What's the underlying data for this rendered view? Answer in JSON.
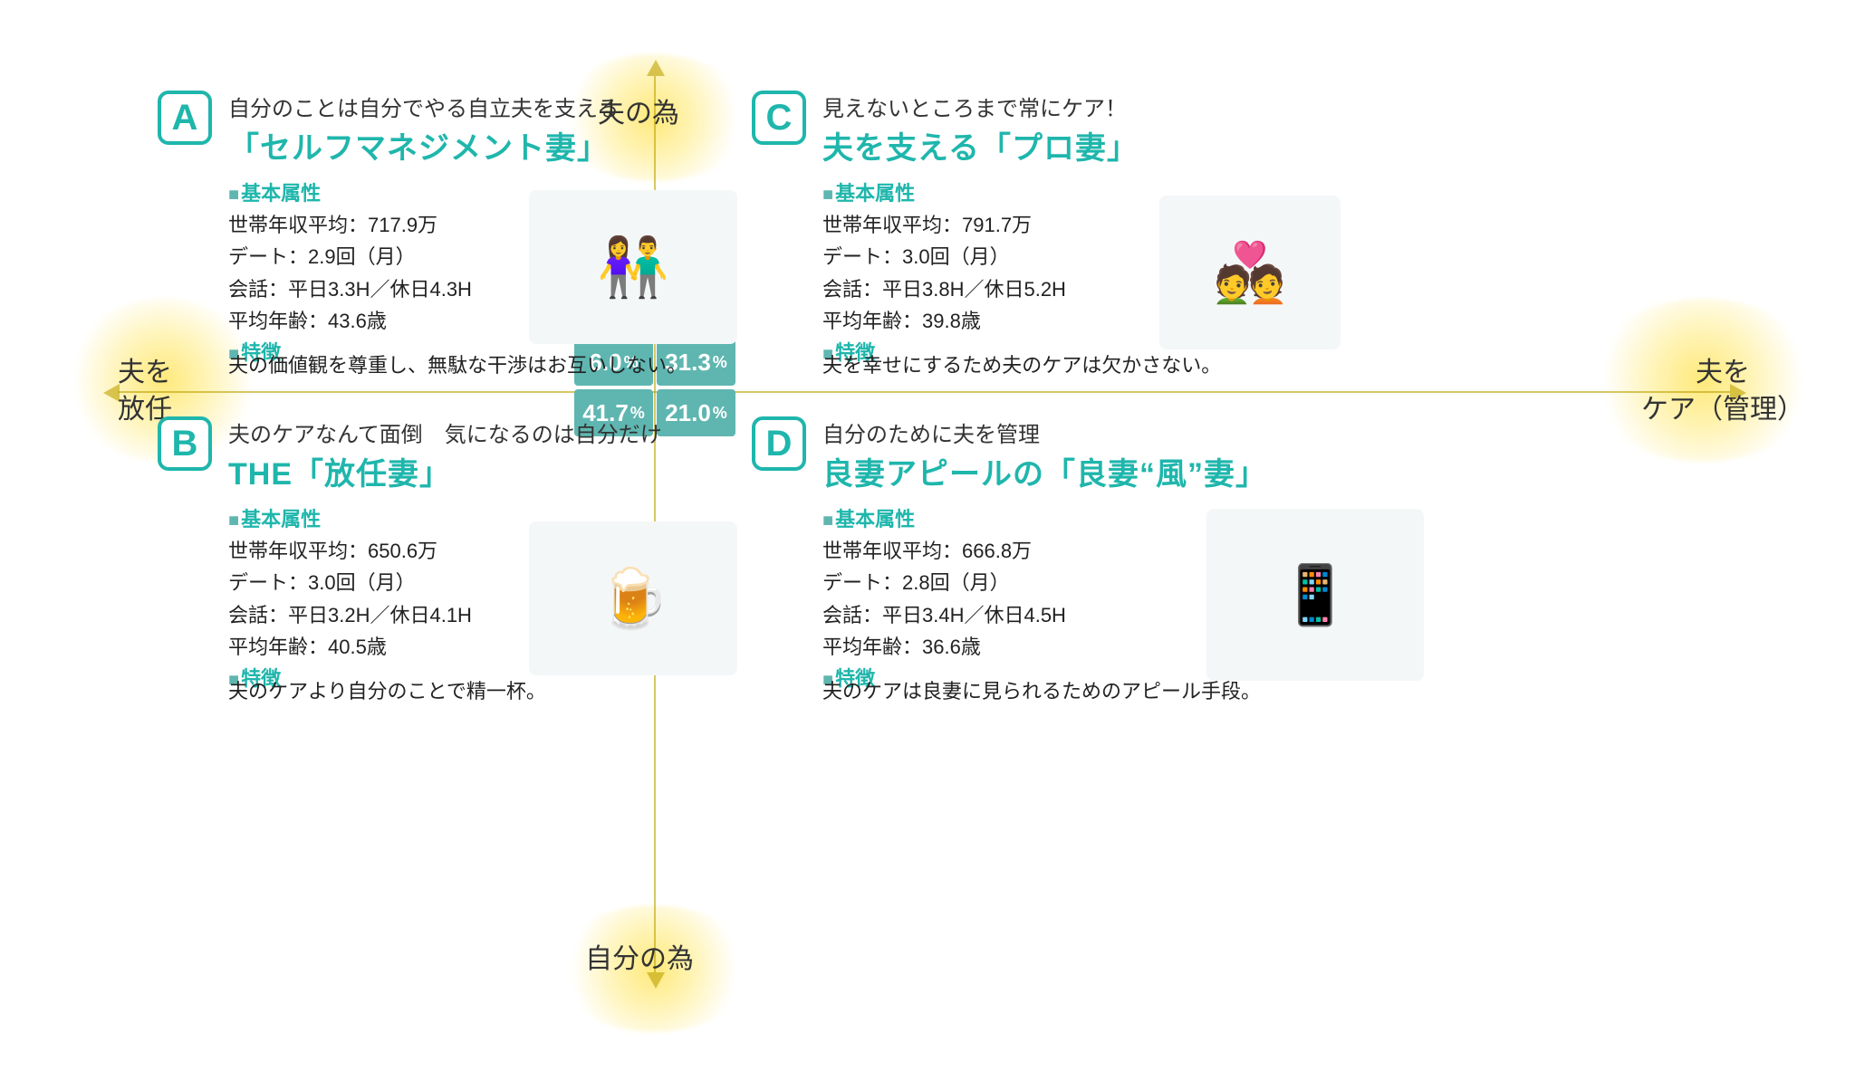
{
  "axes": {
    "top": "夫の為",
    "bottom": "自分の為",
    "left": "夫を\n放任",
    "right": "夫を\nケア（管理）",
    "line_color": "#bca200",
    "glow_color": "#ffe97a"
  },
  "center": {
    "bg_color": "#5fb6b0",
    "text_color": "#ffffff",
    "cells": [
      "6.0",
      "31.3",
      "41.7",
      "21.0"
    ],
    "unit": "%"
  },
  "section_labels": {
    "attrs": "基本属性",
    "feature": "特徴",
    "bullet": "■"
  },
  "colors": {
    "brand": "#1fb6ac",
    "text": "#222222",
    "teal_fill": "#5fb6b0",
    "background": "#ffffff"
  },
  "quadrants": {
    "A": {
      "letter": "A",
      "tag": "自分のことは自分でやる自立夫を支える",
      "title": "「セルフマネジメント妻」",
      "income": "世帯年収平均：717.9万",
      "date": "デート：2.9回（月）",
      "talk": "会話：平日3.3H／休日4.3H",
      "age": "平均年齢：43.6歳",
      "feature": "夫の価値観を尊重し、無駄な干渉はお互いしない。",
      "illus_glyph": "👫"
    },
    "B": {
      "letter": "B",
      "tag": "夫のケアなんて面倒　気になるのは自分だけ",
      "title": "THE「放任妻」",
      "income": "世帯年収平均：650.6万",
      "date": "デート：3.0回（月）",
      "talk": "会話：平日3.2H／休日4.1H",
      "age": "平均年齢：40.5歳",
      "feature": "夫のケアより自分のことで精一杯。",
      "illus_glyph": "🍺"
    },
    "C": {
      "letter": "C",
      "tag": "見えないところまで常にケア！",
      "title": "夫を支える「プロ妻」",
      "income": "世帯年収平均：791.7万",
      "date": "デート：3.0回（月）",
      "talk": "会話：平日3.8H／休日5.2H",
      "age": "平均年齢：39.8歳",
      "feature": "夫を幸せにするため夫のケアは欠かさない。",
      "illus_glyph": "💑"
    },
    "D": {
      "letter": "D",
      "tag": "自分のために夫を管理",
      "title": "良妻アピールの「良妻“風”妻」",
      "income": "世帯年収平均：666.8万",
      "date": "デート：2.8回（月）",
      "talk": "会話：平日3.4H／休日4.5H",
      "age": "平均年齢：36.6歳",
      "feature": "夫のケアは良妻に見られるためのアピール手段。",
      "illus_glyph": "📱"
    }
  }
}
